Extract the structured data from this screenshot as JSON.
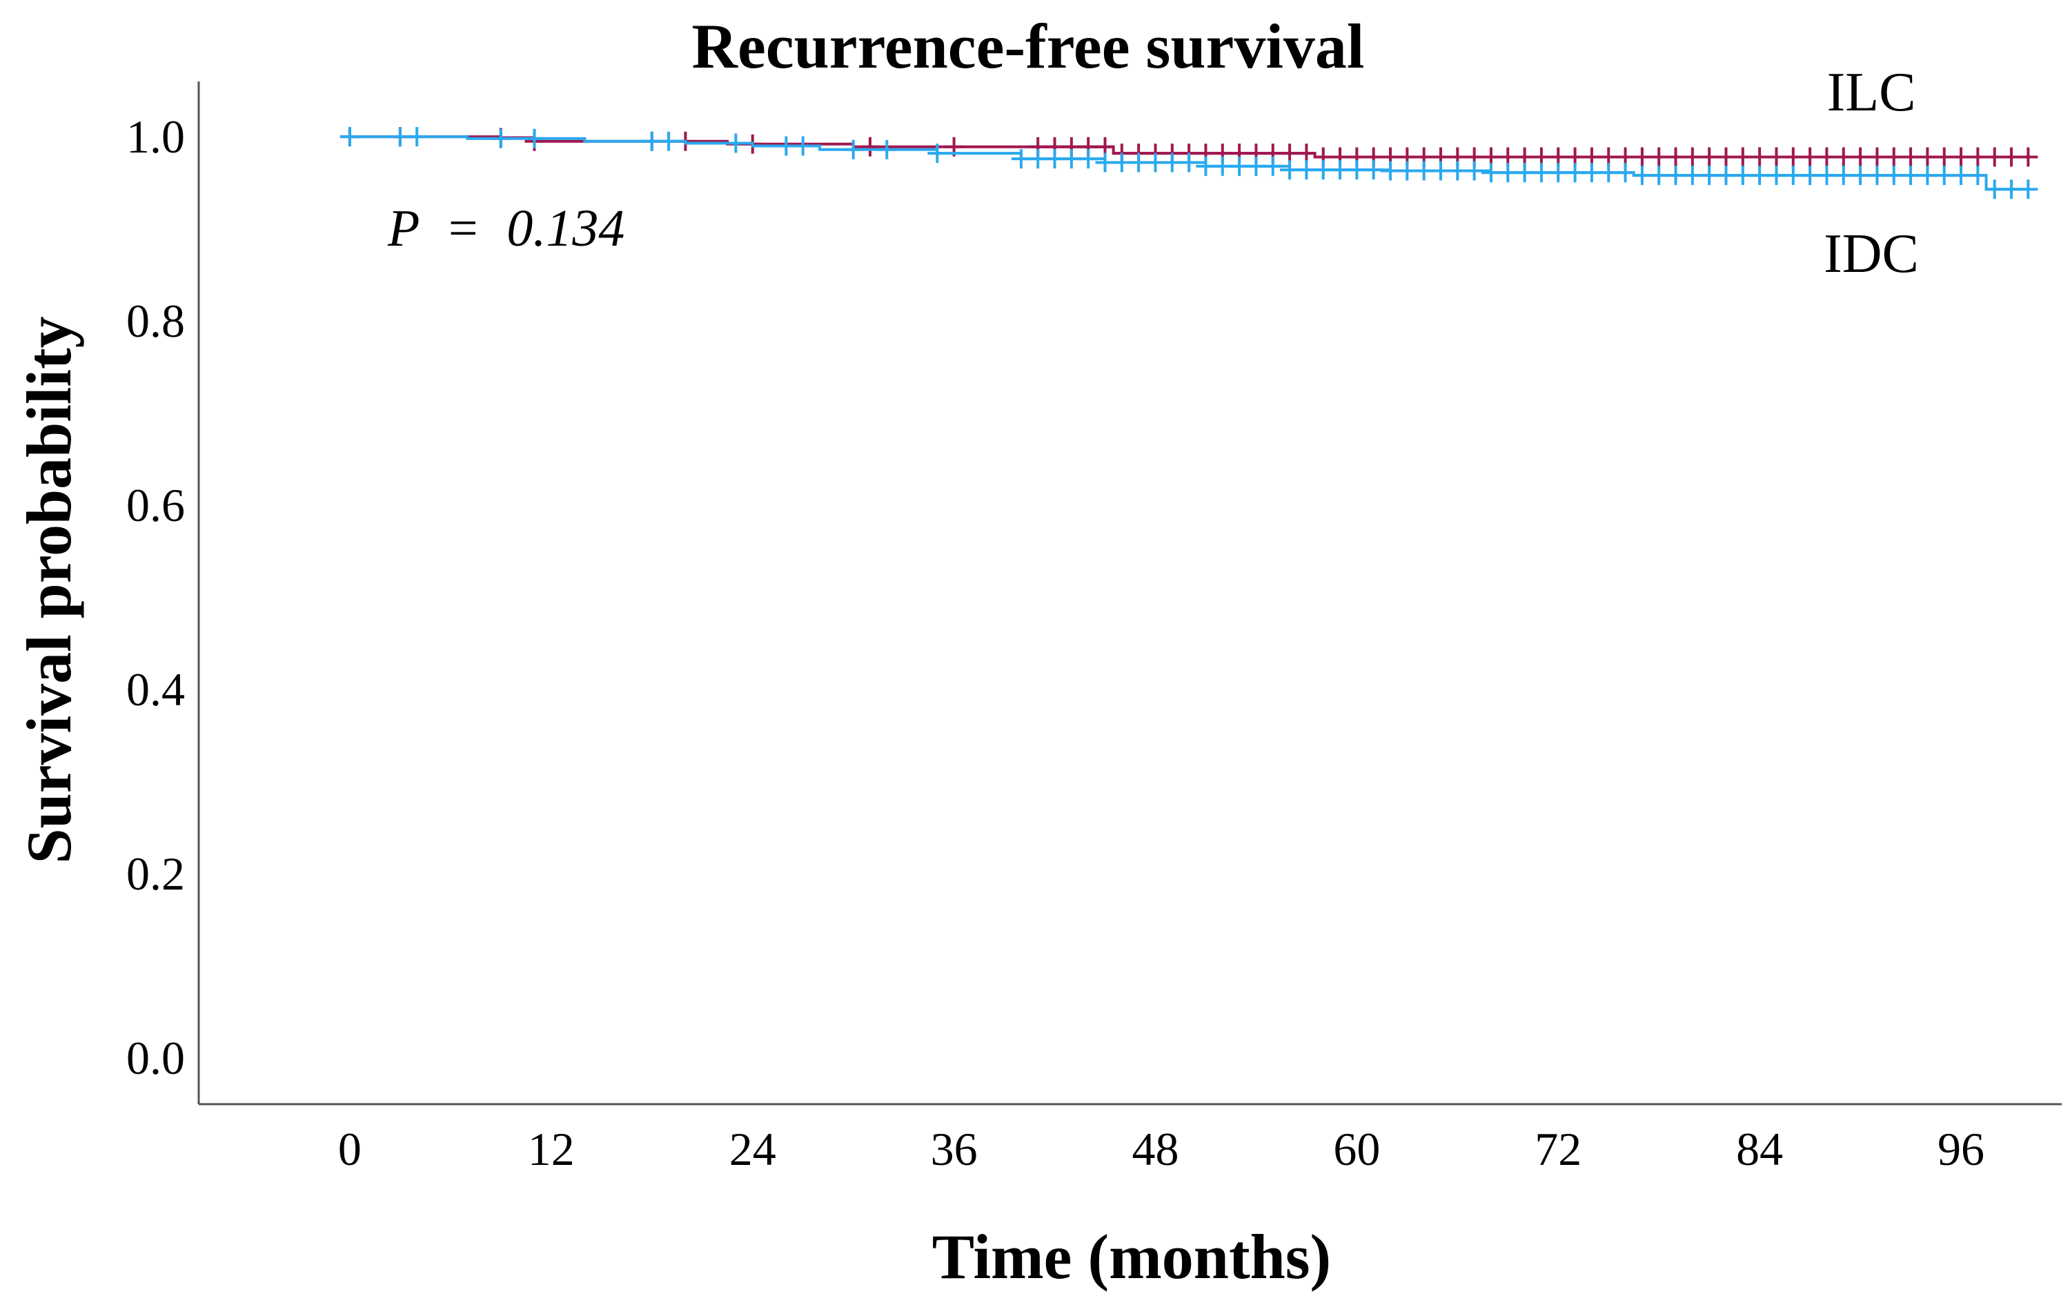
{
  "chart_data": {
    "type": "line",
    "subtype": "kaplan-meier",
    "title": "Recurrence-free survival",
    "xlabel": "Time (months)",
    "ylabel": "Survival probability",
    "xlim": [
      -9,
      102
    ],
    "ylim": [
      -0.05,
      1.06
    ],
    "x_ticks": [
      "0",
      "12",
      "24",
      "36",
      "48",
      "60",
      "72",
      "84",
      "96"
    ],
    "y_ticks": [
      "0.0",
      "0.2",
      "0.4",
      "0.6",
      "0.8",
      "1.0"
    ],
    "grid": false,
    "annotation": "P  =  0.134",
    "colors": {
      "ILC": "#A01850",
      "IDC": "#2AA9EE",
      "axis": "#555555"
    },
    "series": [
      {
        "name": "ILC",
        "steps": [
          [
            0,
            1.0
          ],
          [
            9,
            0.999
          ],
          [
            11,
            0.995
          ],
          [
            22.5,
            0.992
          ],
          [
            30,
            0.989
          ],
          [
            45.5,
            0.982
          ],
          [
            57.5,
            0.978
          ],
          [
            100,
            0.978
          ]
        ],
        "censor": [
          0,
          3,
          9,
          11,
          18,
          20,
          24,
          31,
          36,
          41,
          42,
          43,
          44,
          45,
          46,
          47,
          48,
          49,
          50,
          51,
          52,
          53,
          54,
          55,
          56,
          57,
          58,
          59,
          60,
          61,
          62,
          63,
          64,
          65,
          66,
          67,
          68,
          69,
          70,
          71,
          72,
          73,
          74,
          75,
          76,
          77,
          78,
          79,
          80,
          81,
          82,
          83,
          84,
          85,
          86,
          87,
          88,
          89,
          90,
          91,
          92,
          93,
          94,
          95,
          96,
          97,
          98,
          99,
          100
        ]
      },
      {
        "name": "IDC",
        "steps": [
          [
            0,
            1.0
          ],
          [
            7,
            0.998
          ],
          [
            14,
            0.995
          ],
          [
            20,
            0.993
          ],
          [
            24,
            0.99
          ],
          [
            28,
            0.986
          ],
          [
            35,
            0.982
          ],
          [
            40,
            0.976
          ],
          [
            45,
            0.972
          ],
          [
            51,
            0.968
          ],
          [
            56,
            0.964
          ],
          [
            62,
            0.963
          ],
          [
            68,
            0.961
          ],
          [
            76.5,
            0.958
          ],
          [
            97.5,
            0.943
          ],
          [
            100,
            0.943
          ]
        ],
        "censor": [
          0,
          3,
          4,
          9,
          11,
          18,
          19,
          23,
          26,
          27,
          30,
          32,
          35,
          40,
          41,
          42,
          43,
          44,
          45,
          46,
          47,
          48,
          49,
          50,
          51,
          52,
          53,
          54,
          55,
          56,
          57,
          58,
          59,
          60,
          61,
          62,
          63,
          64,
          65,
          66,
          67,
          68,
          69,
          70,
          71,
          72,
          73,
          74,
          75,
          76,
          77,
          78,
          79,
          80,
          81,
          82,
          83,
          84,
          85,
          86,
          87,
          88,
          89,
          90,
          91,
          92,
          93,
          94,
          95,
          96,
          97,
          98,
          99,
          100
        ]
      }
    ]
  }
}
